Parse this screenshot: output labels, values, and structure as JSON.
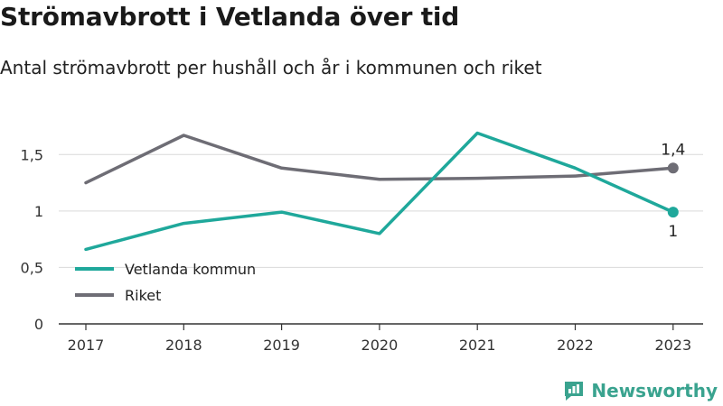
{
  "title": "Strömavbrott i Vetlanda över tid",
  "subtitle": "Antal strömavbrott per hushåll och år i kommunen och riket",
  "brand": "Newsworthy",
  "chart_data": {
    "type": "line",
    "x": [
      "2017",
      "2018",
      "2019",
      "2020",
      "2021",
      "2022",
      "2023"
    ],
    "ylim": [
      0,
      1.75
    ],
    "yticks": [
      0,
      0.5,
      1,
      1.5
    ],
    "ytick_labels": [
      "0",
      "0,5",
      "1",
      "1,5"
    ],
    "grid": true,
    "legend_position": "bottom-left",
    "series": [
      {
        "name": "Vetlanda kommun",
        "color": "#1fa89b",
        "values": [
          0.66,
          0.89,
          0.99,
          0.8,
          1.69,
          1.38,
          0.99
        ],
        "end_label": "1"
      },
      {
        "name": "Riket",
        "color": "#6e6d75",
        "values": [
          1.25,
          1.67,
          1.38,
          1.28,
          1.29,
          1.31,
          1.38
        ],
        "end_label": "1,4"
      }
    ]
  }
}
